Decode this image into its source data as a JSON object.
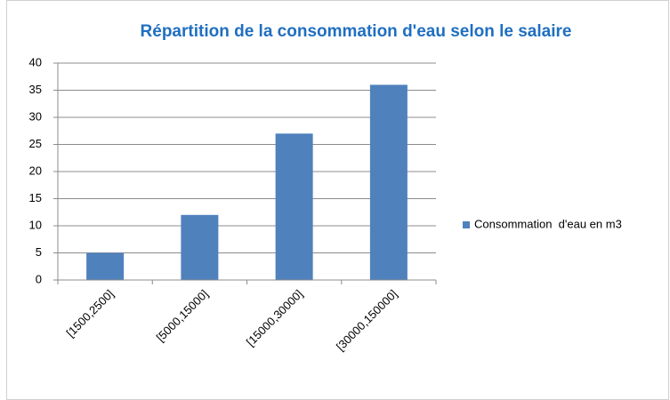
{
  "chart_data": {
    "type": "bar",
    "title": "Répartition de la consommation d'eau selon le salaire",
    "categories": [
      "[1500,2500]",
      "[5000,15000]",
      "[15000,30000]",
      "[30000,150000]"
    ],
    "series": [
      {
        "name": "Consommation  d'eau en m3",
        "color": "#4f81bd",
        "values": [
          5,
          12,
          27,
          36
        ]
      }
    ],
    "ylim": [
      0,
      40
    ],
    "yticks": [
      0,
      5,
      10,
      15,
      20,
      25,
      30,
      35,
      40
    ],
    "grid": true,
    "legend": "right",
    "title_color": "#1f6fc0"
  }
}
